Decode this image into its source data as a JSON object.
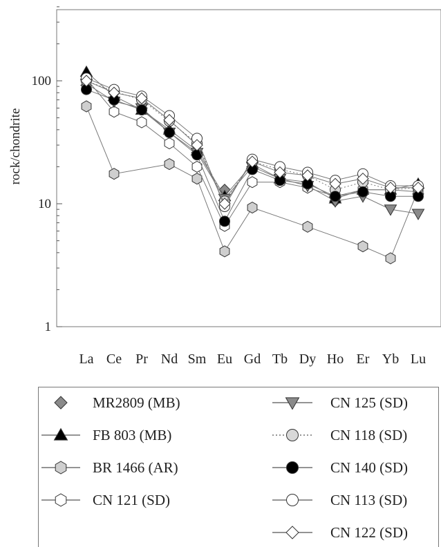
{
  "chart_data": {
    "type": "line",
    "ylabel": "rock/chondrite",
    "yscale": "log",
    "ylim": [
      1,
      400
    ],
    "yticks": [
      1,
      10,
      100
    ],
    "ytick_labels": [
      "1",
      "10",
      "100"
    ],
    "categories": [
      "La",
      "Ce",
      "Pr",
      "Nd",
      "Sm",
      "Eu",
      "Gd",
      "Tb",
      "Dy",
      "Ho",
      "Er",
      "Yb",
      "Lu"
    ],
    "grid": false,
    "legend_placement": "bottom",
    "series": [
      {
        "name": "MR2809 (MB)",
        "marker": "diamond",
        "fill": "#8a8a8a",
        "line": "none",
        "values": [
          92,
          72,
          60,
          38,
          26,
          13,
          20,
          16,
          14,
          10.5,
          12,
          12,
          12
        ]
      },
      {
        "name": "FB 803 (MB)",
        "marker": "triangle-up",
        "fill": "#000000",
        "line": "solid",
        "values": [
          118,
          75,
          58,
          40,
          27,
          11.5,
          21,
          16,
          15,
          11,
          13,
          13,
          14.5
        ]
      },
      {
        "name": "BR 1466 (AR)",
        "marker": "hexagon",
        "fill": "#cfcfcf",
        "line": "solid",
        "values": [
          62,
          17.5,
          null,
          21,
          16,
          4.1,
          9.3,
          null,
          6.5,
          null,
          4.5,
          3.6,
          13
        ]
      },
      {
        "name": "CN 121 (SD)",
        "marker": "hexagon",
        "fill": "#ffffff",
        "line": "solid",
        "values": [
          104,
          56,
          46,
          31,
          20,
          6.6,
          15,
          15,
          13.5,
          11.5,
          13,
          13,
          12.5
        ]
      },
      {
        "name": "CN 125 (SD)",
        "marker": "triangle-down",
        "fill": "#8a8a8a",
        "line": "solid",
        "values": [
          95,
          68,
          60,
          38,
          26,
          11,
          20,
          16,
          14,
          10.5,
          11.5,
          9,
          8.3
        ]
      },
      {
        "name": "CN 118 (SD)",
        "marker": "circle",
        "fill": "#d8d8d8",
        "line": "dotted",
        "values": [
          100,
          82,
          70,
          47,
          31,
          10.5,
          22,
          19,
          17,
          13,
          15,
          13,
          13.5
        ]
      },
      {
        "name": "CN 140 (SD)",
        "marker": "circle",
        "fill": "#000000",
        "line": "solid",
        "values": [
          85,
          70,
          58,
          38,
          25,
          7.2,
          19,
          15.5,
          14.5,
          11.5,
          12.5,
          11.5,
          11.5
        ]
      },
      {
        "name": "CN 113 (SD)",
        "marker": "circle",
        "fill": "#ffffff",
        "line": "solid",
        "values": [
          105,
          85,
          75,
          52,
          34,
          9.5,
          23,
          20,
          18,
          15.5,
          17.5,
          14,
          14
        ]
      },
      {
        "name": "CN 122 (SD)",
        "marker": "diamond",
        "fill": "#ffffff",
        "line": "solid",
        "values": [
          100,
          80,
          72,
          48,
          30,
          10,
          22,
          18,
          17,
          14.5,
          16,
          13.5,
          13.5
        ]
      }
    ]
  }
}
